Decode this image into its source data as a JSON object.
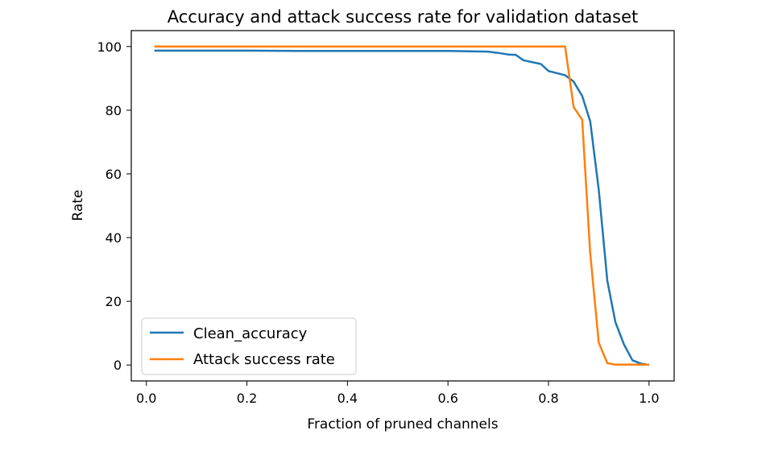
{
  "chart_data": {
    "type": "line",
    "title": "Accuracy and attack success rate for validation dataset",
    "xlabel": "Fraction of pruned channels",
    "ylabel": "Rate",
    "xlim": [
      -0.03,
      1.05
    ],
    "ylim": [
      -5,
      105
    ],
    "xticks": [
      0.0,
      0.2,
      0.4,
      0.6,
      0.8,
      1.0
    ],
    "xtick_labels": [
      "0.0",
      "0.2",
      "0.4",
      "0.6",
      "0.8",
      "1.0"
    ],
    "yticks": [
      0,
      20,
      40,
      60,
      80,
      100
    ],
    "ytick_labels": [
      "0",
      "20",
      "40",
      "60",
      "80",
      "100"
    ],
    "grid": false,
    "legend_position": "lower-left",
    "series": [
      {
        "name": "Clean_accuracy",
        "color": "#1f77b4",
        "x": [
          0.016,
          0.1,
          0.2,
          0.3,
          0.4,
          0.5,
          0.6,
          0.68,
          0.7,
          0.72,
          0.735,
          0.75,
          0.785,
          0.8,
          0.833,
          0.85,
          0.867,
          0.883,
          0.9,
          0.917,
          0.933,
          0.95,
          0.967,
          0.983,
          1.0
        ],
        "y": [
          98.7,
          98.7,
          98.7,
          98.6,
          98.6,
          98.6,
          98.6,
          98.4,
          98.0,
          97.5,
          97.4,
          95.7,
          94.5,
          92.3,
          91.0,
          89.0,
          84.5,
          76.5,
          55.0,
          26.5,
          13.5,
          6.5,
          1.5,
          0.5,
          0.0
        ]
      },
      {
        "name": "Attack success rate",
        "color": "#ff7f0e",
        "x": [
          0.016,
          0.2,
          0.4,
          0.6,
          0.8,
          0.833,
          0.85,
          0.867,
          0.883,
          0.9,
          0.917,
          0.933,
          0.95,
          0.967,
          0.983,
          1.0
        ],
        "y": [
          100,
          100,
          100,
          100,
          100,
          100,
          81.0,
          77.0,
          35.0,
          7.0,
          0.6,
          0.1,
          0.1,
          0.1,
          0.1,
          0.1
        ]
      }
    ]
  }
}
